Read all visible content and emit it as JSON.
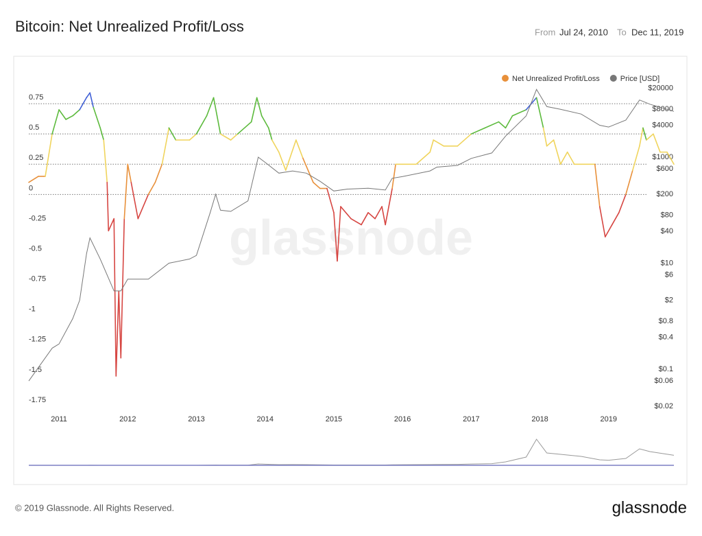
{
  "chart_data": {
    "type": "line",
    "title": "Bitcoin: Net Unrealized Profit/Loss",
    "range_from_label": "From",
    "range_from": "Jul 24, 2010",
    "range_to_label": "To",
    "range_to": "Dec 11, 2019",
    "watermark": "glassnode",
    "footer": "© 2019 Glassnode. All Rights Reserved.",
    "logo": "glassnode",
    "xlim": [
      2010.56,
      2019.95
    ],
    "xticks": [
      2011,
      2012,
      2013,
      2014,
      2015,
      2016,
      2017,
      2018,
      2019
    ],
    "ylim": [
      -1.75,
      1
    ],
    "yticks": [
      -1.75,
      -1.5,
      -1.25,
      -1,
      -0.75,
      -0.5,
      -0.25,
      0,
      0.25,
      0.5,
      0.75
    ],
    "y2lim": [
      0.02,
      38000
    ],
    "y2log": true,
    "y2ticks": [
      {
        "value": 0.02,
        "label": "$0.02"
      },
      {
        "value": 0.06,
        "label": "$0.06"
      },
      {
        "value": 0.1,
        "label": "$0.1"
      },
      {
        "value": 0.4,
        "label": "$0.4"
      },
      {
        "value": 0.8,
        "label": "$0.8"
      },
      {
        "value": 2,
        "label": "$2"
      },
      {
        "value": 6,
        "label": "$6"
      },
      {
        "value": 10,
        "label": "$10"
      },
      {
        "value": 40,
        "label": "$40"
      },
      {
        "value": 80,
        "label": "$80"
      },
      {
        "value": 200,
        "label": "$200"
      },
      {
        "value": 600,
        "label": "$600"
      },
      {
        "value": 1000,
        "label": "$1000"
      },
      {
        "value": 4000,
        "label": "$4000"
      },
      {
        "value": 8000,
        "label": "$8000"
      },
      {
        "value": 20000,
        "label": "$20000"
      }
    ],
    "grid": true,
    "legend_position": "top-right",
    "zone_colors": [
      "#d64541",
      "#e8903a",
      "#f0d45c",
      "#5cba3c",
      "#3f5fd6"
    ],
    "series": [
      {
        "name": "Net Unrealized Profit/Loss",
        "color": "#e8903a",
        "x": [
          2010.56,
          2010.7,
          2010.8,
          2010.9,
          2011.0,
          2011.1,
          2011.2,
          2011.3,
          2011.4,
          2011.45,
          2011.5,
          2011.6,
          2011.65,
          2011.7,
          2011.72,
          2011.8,
          2011.83,
          2011.87,
          2011.9,
          2011.95,
          2012.0,
          2012.05,
          2012.15,
          2012.3,
          2012.4,
          2012.5,
          2012.6,
          2012.7,
          2012.9,
          2013.0,
          2013.15,
          2013.25,
          2013.3,
          2013.35,
          2013.5,
          2013.6,
          2013.8,
          2013.88,
          2013.95,
          2014.05,
          2014.1,
          2014.2,
          2014.3,
          2014.45,
          2014.55,
          2014.7,
          2014.8,
          2014.9,
          2015.0,
          2015.05,
          2015.1,
          2015.25,
          2015.4,
          2015.5,
          2015.6,
          2015.7,
          2015.75,
          2015.85,
          2015.9,
          2016.0,
          2016.2,
          2016.4,
          2016.45,
          2016.6,
          2016.8,
          2017.0,
          2017.2,
          2017.4,
          2017.5,
          2017.6,
          2017.8,
          2017.95,
          2018.05,
          2018.1,
          2018.2,
          2018.3,
          2018.4,
          2018.5,
          2018.6,
          2018.8,
          2018.87,
          2018.95,
          2019.05,
          2019.15,
          2019.25,
          2019.35,
          2019.45,
          2019.5,
          2019.55,
          2019.65,
          2019.75,
          2019.85,
          2019.95
        ],
        "values": [
          0.1,
          0.15,
          0.15,
          0.5,
          0.7,
          0.62,
          0.65,
          0.7,
          0.8,
          0.84,
          0.72,
          0.55,
          0.45,
          0.1,
          -0.3,
          -0.2,
          -1.5,
          -0.8,
          -1.35,
          -0.2,
          0.25,
          0.1,
          -0.2,
          0.0,
          0.1,
          0.25,
          0.55,
          0.45,
          0.45,
          0.5,
          0.65,
          0.8,
          0.65,
          0.5,
          0.45,
          0.5,
          0.6,
          0.8,
          0.65,
          0.55,
          0.45,
          0.35,
          0.2,
          0.45,
          0.3,
          0.1,
          0.05,
          0.05,
          -0.15,
          -0.55,
          -0.1,
          -0.2,
          -0.25,
          -0.15,
          -0.2,
          -0.1,
          -0.25,
          0.05,
          0.25,
          0.25,
          0.25,
          0.35,
          0.45,
          0.4,
          0.4,
          0.5,
          0.55,
          0.6,
          0.55,
          0.65,
          0.7,
          0.8,
          0.55,
          0.4,
          0.45,
          0.25,
          0.35,
          0.25,
          0.25,
          0.25,
          -0.1,
          -0.35,
          -0.25,
          -0.15,
          0.0,
          0.2,
          0.4,
          0.55,
          0.45,
          0.5,
          0.35,
          0.35,
          0.25
        ]
      },
      {
        "name": "Price [USD]",
        "color": "#777777",
        "axis": "y2",
        "x": [
          2010.56,
          2010.9,
          2011.0,
          2011.2,
          2011.3,
          2011.4,
          2011.45,
          2011.6,
          2011.8,
          2011.9,
          2012.0,
          2012.3,
          2012.6,
          2012.9,
          2013.0,
          2013.2,
          2013.28,
          2013.35,
          2013.5,
          2013.75,
          2013.9,
          2014.0,
          2014.2,
          2014.4,
          2014.6,
          2014.8,
          2015.0,
          2015.2,
          2015.5,
          2015.75,
          2015.85,
          2016.0,
          2016.4,
          2016.5,
          2016.8,
          2017.0,
          2017.3,
          2017.5,
          2017.8,
          2017.95,
          2018.1,
          2018.3,
          2018.6,
          2018.87,
          2019.0,
          2019.25,
          2019.45,
          2019.6,
          2019.95
        ],
        "values": [
          0.06,
          0.25,
          0.3,
          0.9,
          2,
          15,
          30,
          12,
          3,
          3,
          5,
          5,
          10,
          12,
          14,
          90,
          200,
          100,
          95,
          150,
          1000,
          800,
          500,
          550,
          500,
          350,
          230,
          250,
          260,
          240,
          400,
          430,
          550,
          650,
          700,
          950,
          1200,
          2500,
          6000,
          19000,
          9000,
          8000,
          6500,
          4000,
          3700,
          5000,
          12000,
          10000,
          7300
        ]
      }
    ]
  }
}
